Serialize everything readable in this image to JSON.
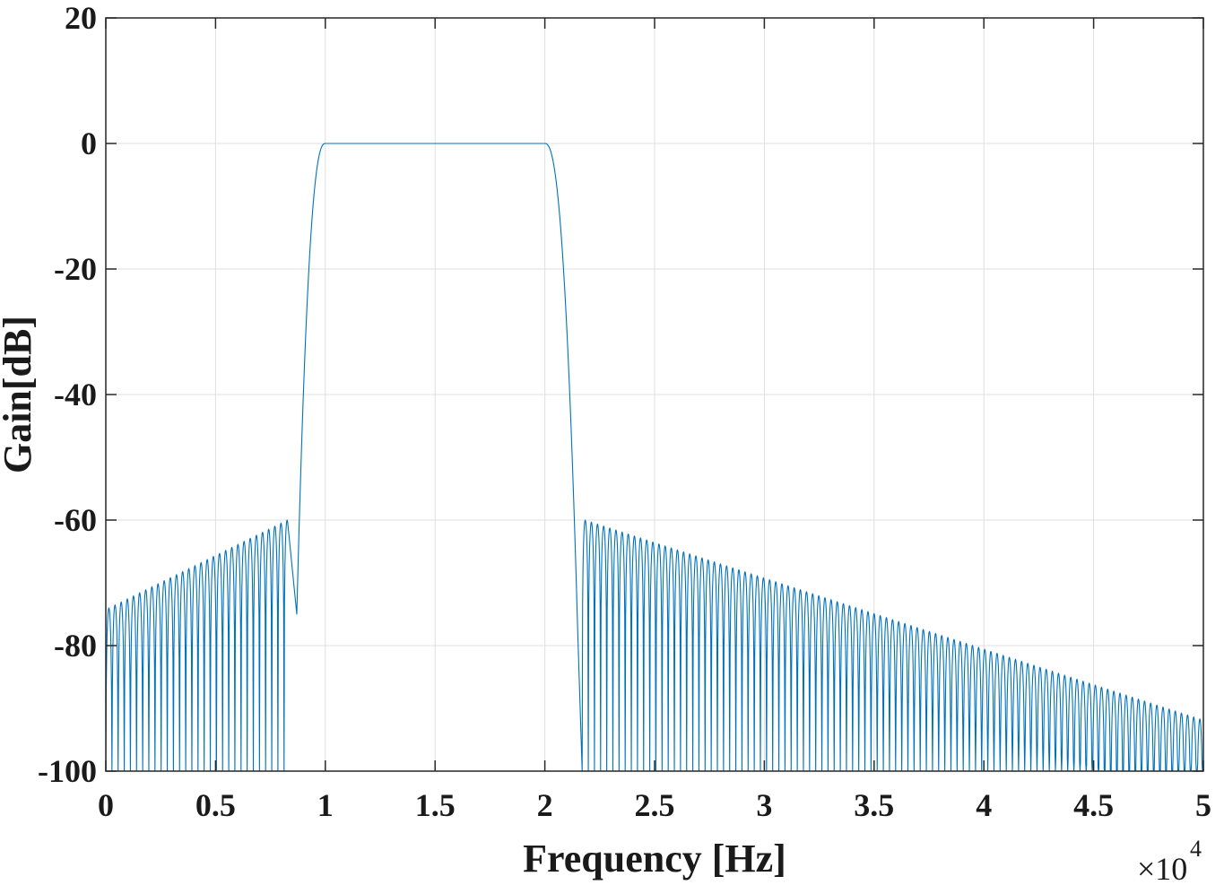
{
  "chart_data": {
    "type": "line",
    "title": "",
    "xlabel": "Frequency [Hz]",
    "ylabel": "Gain[dB]",
    "x_multiplier_label": "×10",
    "x_multiplier_exponent": "4",
    "xlim": [
      0,
      50000
    ],
    "ylim": [
      -100,
      20
    ],
    "x_ticks": [
      0,
      5000,
      10000,
      15000,
      20000,
      25000,
      30000,
      35000,
      40000,
      45000,
      50000
    ],
    "x_tick_labels": [
      "0",
      "0.5",
      "1",
      "1.5",
      "2",
      "2.5",
      "3",
      "3.5",
      "4",
      "4.5",
      "5"
    ],
    "y_ticks": [
      20,
      0,
      -20,
      -40,
      -60,
      -80,
      -100
    ],
    "y_tick_labels": [
      "20",
      "0",
      "-20",
      "-40",
      "-60",
      "-80",
      "-100"
    ],
    "grid": true,
    "legend": "none",
    "series_color": "#0072BD",
    "series": [
      {
        "passband": {
          "x_start": 10000,
          "x_end": 20000,
          "gain_db": 0
        },
        "transition_low": {
          "x_start": 8700,
          "x_end": 10000
        },
        "transition_high": {
          "x_start": 20000,
          "x_end": 21500
        },
        "stopband_low": {
          "x_start": 0,
          "x_end": 8300,
          "lobe_spacing": 280,
          "peak_gain_start_db": -74,
          "peak_gain_end_db": -60,
          "null_gain_db": -100
        },
        "stopband_high": {
          "x_start": 21700,
          "x_end": 50000,
          "lobe_spacing": 280,
          "peak_gain_start_db": -60,
          "peak_gain_end_db": -92,
          "null_gain_db": -100
        }
      }
    ]
  }
}
